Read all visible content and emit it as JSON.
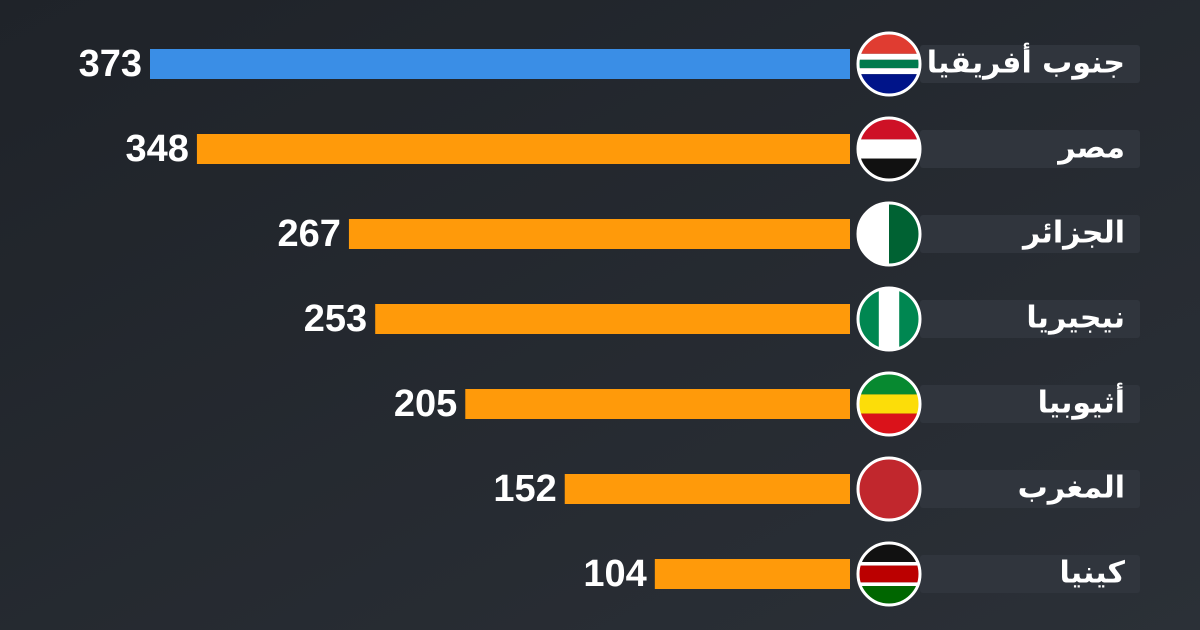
{
  "chart_data": {
    "type": "bar",
    "categories": [
      "جنوب أفريقيا",
      "مصر",
      "الجزائر",
      "نيجيريا",
      "أثيوبيا",
      "المغرب",
      "كينيا"
    ],
    "values": [
      373,
      348,
      267,
      253,
      205,
      152,
      104
    ],
    "colors": [
      "#3a8ee6",
      "#ff9a0a",
      "#ff9a0a",
      "#ff9a0a",
      "#ff9a0a",
      "#ff9a0a",
      "#ff9a0a"
    ]
  }
}
